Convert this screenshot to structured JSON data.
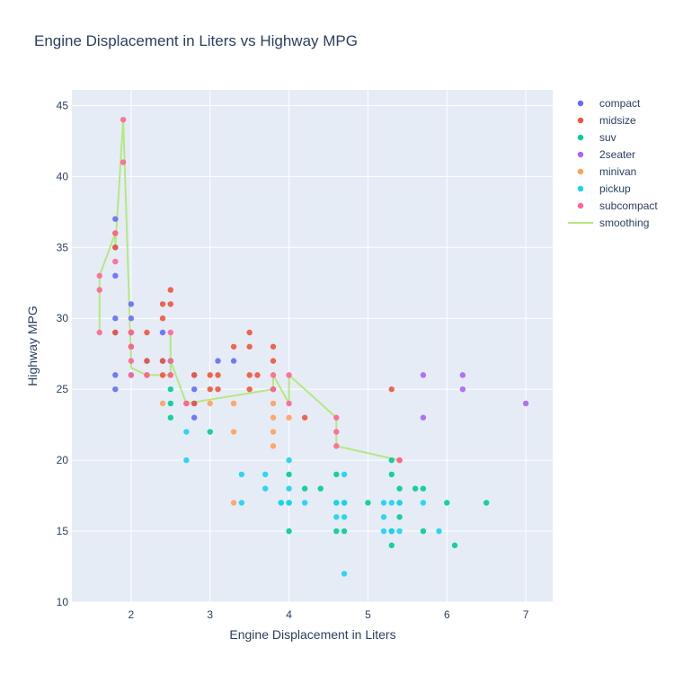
{
  "chart_data": {
    "type": "scatter",
    "title": "Engine Displacement in Liters vs Highway MPG",
    "xlabel": "Engine Displacement in Liters",
    "ylabel": "Highway MPG",
    "xlim": [
      1.25,
      7.34
    ],
    "ylim": [
      10,
      46.1
    ],
    "xticks": [
      2,
      3,
      4,
      5,
      6,
      7
    ],
    "yticks": [
      10,
      15,
      20,
      25,
      30,
      35,
      40,
      45
    ],
    "grid": true,
    "legend_position": "top-right",
    "series": [
      {
        "name": "compact",
        "color": "#636efa",
        "points": [
          [
            1.8,
            29
          ],
          [
            2,
            31
          ],
          [
            2,
            30
          ],
          [
            2.8,
            26
          ],
          [
            3.1,
            27
          ],
          [
            1.8,
            26
          ],
          [
            1.8,
            25
          ],
          [
            2,
            28
          ],
          [
            2,
            29
          ],
          [
            2.8,
            25
          ],
          [
            2.8,
            23
          ],
          [
            1.8,
            33
          ],
          [
            1.8,
            35
          ],
          [
            1.8,
            37
          ],
          [
            2.4,
            29
          ],
          [
            2.4,
            27
          ],
          [
            2.2,
            27
          ],
          [
            2.5,
            27
          ],
          [
            3.3,
            27
          ],
          [
            2,
            26
          ],
          [
            1.8,
            30
          ],
          [
            2.8,
            24
          ]
        ]
      },
      {
        "name": "midsize",
        "color": "#EF553B",
        "points": [
          [
            2.4,
            31
          ],
          [
            2.4,
            30
          ],
          [
            2.5,
            32
          ],
          [
            2.5,
            31
          ],
          [
            3.5,
            29
          ],
          [
            3.5,
            28
          ],
          [
            3.3,
            28
          ],
          [
            3.8,
            28
          ],
          [
            3.8,
            27
          ],
          [
            3,
            26
          ],
          [
            3.1,
            26
          ],
          [
            3.5,
            26
          ],
          [
            3.6,
            26
          ],
          [
            2.4,
            27
          ],
          [
            2.4,
            26
          ],
          [
            2.2,
            27
          ],
          [
            2.2,
            26
          ],
          [
            2.5,
            26
          ],
          [
            2.8,
            26
          ],
          [
            3,
            25
          ],
          [
            3.1,
            25
          ],
          [
            3.5,
            25
          ],
          [
            2.7,
            24
          ],
          [
            2.8,
            24
          ],
          [
            3.8,
            25
          ],
          [
            4.2,
            23
          ],
          [
            5.3,
            25
          ],
          [
            5.4,
            20
          ],
          [
            1.8,
            29
          ],
          [
            1.8,
            36
          ],
          [
            2,
            29
          ],
          [
            2,
            28
          ],
          [
            1.8,
            35
          ],
          [
            2.2,
            29
          ]
        ]
      },
      {
        "name": "suv",
        "color": "#00cc96",
        "points": [
          [
            2.5,
            25
          ],
          [
            2.5,
            24
          ],
          [
            2.5,
            23
          ],
          [
            2.5,
            27
          ],
          [
            3,
            22
          ],
          [
            4,
            19
          ],
          [
            4,
            17
          ],
          [
            4,
            15
          ],
          [
            4.2,
            18
          ],
          [
            4.4,
            18
          ],
          [
            4.6,
            19
          ],
          [
            4.6,
            17
          ],
          [
            4.6,
            15
          ],
          [
            4.7,
            15
          ],
          [
            5,
            17
          ],
          [
            5.3,
            20
          ],
          [
            5.3,
            19
          ],
          [
            5.3,
            15
          ],
          [
            5.3,
            14
          ],
          [
            5.4,
            18
          ],
          [
            5.4,
            17
          ],
          [
            5.4,
            16
          ],
          [
            5.6,
            18
          ],
          [
            5.7,
            18
          ],
          [
            5.7,
            15
          ],
          [
            6,
            17
          ],
          [
            6.1,
            14
          ],
          [
            6.5,
            17
          ],
          [
            4.7,
            17
          ],
          [
            3.9,
            17
          ]
        ]
      },
      {
        "name": "2seater",
        "color": "#ab63fa",
        "points": [
          [
            5.7,
            26
          ],
          [
            5.7,
            23
          ],
          [
            6.2,
            26
          ],
          [
            6.2,
            25
          ],
          [
            7,
            24
          ]
        ]
      },
      {
        "name": "minivan",
        "color": "#FFA15A",
        "points": [
          [
            2.4,
            24
          ],
          [
            3,
            24
          ],
          [
            3.3,
            24
          ],
          [
            3.3,
            22
          ],
          [
            3.3,
            17
          ],
          [
            3.8,
            23
          ],
          [
            3.8,
            22
          ],
          [
            3.8,
            21
          ],
          [
            4,
            23
          ],
          [
            3.8,
            24
          ]
        ]
      },
      {
        "name": "pickup",
        "color": "#19d3f3",
        "points": [
          [
            2.7,
            22
          ],
          [
            2.7,
            20
          ],
          [
            3.4,
            19
          ],
          [
            3.4,
            17
          ],
          [
            3.7,
            19
          ],
          [
            3.7,
            18
          ],
          [
            3.9,
            17
          ],
          [
            4,
            20
          ],
          [
            4,
            18
          ],
          [
            4,
            17
          ],
          [
            4.2,
            17
          ],
          [
            4.6,
            17
          ],
          [
            4.6,
            16
          ],
          [
            4.7,
            17
          ],
          [
            4.7,
            16
          ],
          [
            4.7,
            12
          ],
          [
            4.7,
            19
          ],
          [
            5.2,
            17
          ],
          [
            5.2,
            16
          ],
          [
            5.2,
            15
          ],
          [
            5.4,
            17
          ],
          [
            5.4,
            15
          ],
          [
            5.9,
            15
          ],
          [
            5.7,
            17
          ],
          [
            5.3,
            15
          ],
          [
            5.3,
            17
          ]
        ]
      },
      {
        "name": "subcompact",
        "color": "#FF6692",
        "points": [
          [
            1.6,
            33
          ],
          [
            1.6,
            32
          ],
          [
            1.6,
            29
          ],
          [
            1.8,
            34
          ],
          [
            1.8,
            36
          ],
          [
            1.9,
            44
          ],
          [
            1.9,
            41
          ],
          [
            2,
            29
          ],
          [
            2,
            28
          ],
          [
            2,
            27
          ],
          [
            2,
            26
          ],
          [
            2.5,
            29
          ],
          [
            2.5,
            26
          ],
          [
            2.5,
            27
          ],
          [
            2.2,
            26
          ],
          [
            2.7,
            24
          ],
          [
            3.8,
            26
          ],
          [
            3.8,
            25
          ],
          [
            4,
            24
          ],
          [
            4,
            26
          ],
          [
            4.6,
            23
          ],
          [
            4.6,
            22
          ],
          [
            4.6,
            21
          ],
          [
            5.4,
            20
          ]
        ]
      }
    ],
    "smoothing": {
      "name": "smoothing",
      "color": "#b6e880",
      "points": [
        [
          1.6,
          29
        ],
        [
          1.6,
          33
        ],
        [
          1.8,
          36
        ],
        [
          1.8,
          35
        ],
        [
          1.9,
          44
        ],
        [
          2,
          27
        ],
        [
          2,
          26.5
        ],
        [
          2.2,
          26
        ],
        [
          2.5,
          26
        ],
        [
          2.5,
          29
        ],
        [
          2.5,
          27
        ],
        [
          2.7,
          24
        ],
        [
          3.8,
          25
        ],
        [
          3.8,
          26
        ],
        [
          4,
          24
        ],
        [
          4,
          26
        ],
        [
          4.6,
          23
        ],
        [
          4.6,
          22
        ],
        [
          4.6,
          21
        ],
        [
          5.4,
          20
        ]
      ]
    }
  }
}
